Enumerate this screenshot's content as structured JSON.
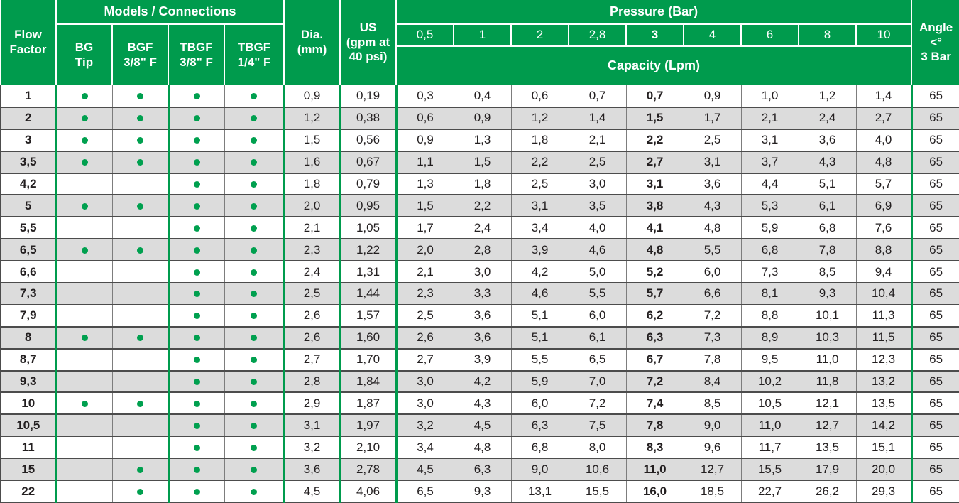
{
  "accent_color": "#009b4d",
  "stripe_color": "#dcdcdc",
  "dot_color": "#00a04f",
  "table": {
    "header": {
      "flow_factor": "Flow\nFactor",
      "models_connections": "Models / Connections",
      "model_columns": [
        "BG\nTip",
        "BGF\n3/8\" F",
        "TBGF\n3/8\" F",
        "TBGF\n1/4\" F"
      ],
      "dia": "Dia.\n(mm)",
      "us": "US\n(gpm at\n40 psi)",
      "pressure": "Pressure (Bar)",
      "pressure_values": [
        "0,5",
        "1",
        "2",
        "2,8",
        "3",
        "4",
        "6",
        "8",
        "10"
      ],
      "bold_pressure_index": 4,
      "capacity": "Capacity (Lpm)",
      "angle": "Angle\n<°\n3 Bar"
    },
    "rows": [
      {
        "flow": "1",
        "models": [
          true,
          true,
          true,
          true
        ],
        "dia": "0,9",
        "us": "0,19",
        "capacity": [
          "0,3",
          "0,4",
          "0,6",
          "0,7",
          "0,7",
          "0,9",
          "1,0",
          "1,2",
          "1,4"
        ],
        "angle": "65"
      },
      {
        "flow": "2",
        "models": [
          true,
          true,
          true,
          true
        ],
        "dia": "1,2",
        "us": "0,38",
        "capacity": [
          "0,6",
          "0,9",
          "1,2",
          "1,4",
          "1,5",
          "1,7",
          "2,1",
          "2,4",
          "2,7"
        ],
        "angle": "65"
      },
      {
        "flow": "3",
        "models": [
          true,
          true,
          true,
          true
        ],
        "dia": "1,5",
        "us": "0,56",
        "capacity": [
          "0,9",
          "1,3",
          "1,8",
          "2,1",
          "2,2",
          "2,5",
          "3,1",
          "3,6",
          "4,0"
        ],
        "angle": "65"
      },
      {
        "flow": "3,5",
        "models": [
          true,
          true,
          true,
          true
        ],
        "dia": "1,6",
        "us": "0,67",
        "capacity": [
          "1,1",
          "1,5",
          "2,2",
          "2,5",
          "2,7",
          "3,1",
          "3,7",
          "4,3",
          "4,8"
        ],
        "angle": "65"
      },
      {
        "flow": "4,2",
        "models": [
          false,
          false,
          true,
          true
        ],
        "dia": "1,8",
        "us": "0,79",
        "capacity": [
          "1,3",
          "1,8",
          "2,5",
          "3,0",
          "3,1",
          "3,6",
          "4,4",
          "5,1",
          "5,7"
        ],
        "angle": "65"
      },
      {
        "flow": "5",
        "models": [
          true,
          true,
          true,
          true
        ],
        "dia": "2,0",
        "us": "0,95",
        "capacity": [
          "1,5",
          "2,2",
          "3,1",
          "3,5",
          "3,8",
          "4,3",
          "5,3",
          "6,1",
          "6,9"
        ],
        "angle": "65"
      },
      {
        "flow": "5,5",
        "models": [
          false,
          false,
          true,
          true
        ],
        "dia": "2,1",
        "us": "1,05",
        "capacity": [
          "1,7",
          "2,4",
          "3,4",
          "4,0",
          "4,1",
          "4,8",
          "5,9",
          "6,8",
          "7,6"
        ],
        "angle": "65"
      },
      {
        "flow": "6,5",
        "models": [
          true,
          true,
          true,
          true
        ],
        "dia": "2,3",
        "us": "1,22",
        "capacity": [
          "2,0",
          "2,8",
          "3,9",
          "4,6",
          "4,8",
          "5,5",
          "6,8",
          "7,8",
          "8,8"
        ],
        "angle": "65"
      },
      {
        "flow": "6,6",
        "models": [
          false,
          false,
          true,
          true
        ],
        "dia": "2,4",
        "us": "1,31",
        "capacity": [
          "2,1",
          "3,0",
          "4,2",
          "5,0",
          "5,2",
          "6,0",
          "7,3",
          "8,5",
          "9,4"
        ],
        "angle": "65"
      },
      {
        "flow": "7,3",
        "models": [
          false,
          false,
          true,
          true
        ],
        "dia": "2,5",
        "us": "1,44",
        "capacity": [
          "2,3",
          "3,3",
          "4,6",
          "5,5",
          "5,7",
          "6,6",
          "8,1",
          "9,3",
          "10,4"
        ],
        "angle": "65"
      },
      {
        "flow": "7,9",
        "models": [
          false,
          false,
          true,
          true
        ],
        "dia": "2,6",
        "us": "1,57",
        "capacity": [
          "2,5",
          "3,6",
          "5,1",
          "6,0",
          "6,2",
          "7,2",
          "8,8",
          "10,1",
          "11,3"
        ],
        "angle": "65"
      },
      {
        "flow": "8",
        "models": [
          true,
          true,
          true,
          true
        ],
        "dia": "2,6",
        "us": "1,60",
        "capacity": [
          "2,6",
          "3,6",
          "5,1",
          "6,1",
          "6,3",
          "7,3",
          "8,9",
          "10,3",
          "11,5"
        ],
        "angle": "65"
      },
      {
        "flow": "8,7",
        "models": [
          false,
          false,
          true,
          true
        ],
        "dia": "2,7",
        "us": "1,70",
        "capacity": [
          "2,7",
          "3,9",
          "5,5",
          "6,5",
          "6,7",
          "7,8",
          "9,5",
          "11,0",
          "12,3"
        ],
        "angle": "65"
      },
      {
        "flow": "9,3",
        "models": [
          false,
          false,
          true,
          true
        ],
        "dia": "2,8",
        "us": "1,84",
        "capacity": [
          "3,0",
          "4,2",
          "5,9",
          "7,0",
          "7,2",
          "8,4",
          "10,2",
          "11,8",
          "13,2"
        ],
        "angle": "65"
      },
      {
        "flow": "10",
        "models": [
          true,
          true,
          true,
          true
        ],
        "dia": "2,9",
        "us": "1,87",
        "capacity": [
          "3,0",
          "4,3",
          "6,0",
          "7,2",
          "7,4",
          "8,5",
          "10,5",
          "12,1",
          "13,5"
        ],
        "angle": "65"
      },
      {
        "flow": "10,5",
        "models": [
          false,
          false,
          true,
          true
        ],
        "dia": "3,1",
        "us": "1,97",
        "capacity": [
          "3,2",
          "4,5",
          "6,3",
          "7,5",
          "7,8",
          "9,0",
          "11,0",
          "12,7",
          "14,2"
        ],
        "angle": "65"
      },
      {
        "flow": "11",
        "models": [
          false,
          false,
          true,
          true
        ],
        "dia": "3,2",
        "us": "2,10",
        "capacity": [
          "3,4",
          "4,8",
          "6,8",
          "8,0",
          "8,3",
          "9,6",
          "11,7",
          "13,5",
          "15,1"
        ],
        "angle": "65"
      },
      {
        "flow": "15",
        "models": [
          false,
          true,
          true,
          true
        ],
        "dia": "3,6",
        "us": "2,78",
        "capacity": [
          "4,5",
          "6,3",
          "9,0",
          "10,6",
          "11,0",
          "12,7",
          "15,5",
          "17,9",
          "20,0"
        ],
        "angle": "65"
      },
      {
        "flow": "22",
        "models": [
          false,
          true,
          true,
          true
        ],
        "dia": "4,5",
        "us": "4,06",
        "capacity": [
          "6,5",
          "9,3",
          "13,1",
          "15,5",
          "16,0",
          "18,5",
          "22,7",
          "26,2",
          "29,3"
        ],
        "angle": "65"
      }
    ]
  }
}
